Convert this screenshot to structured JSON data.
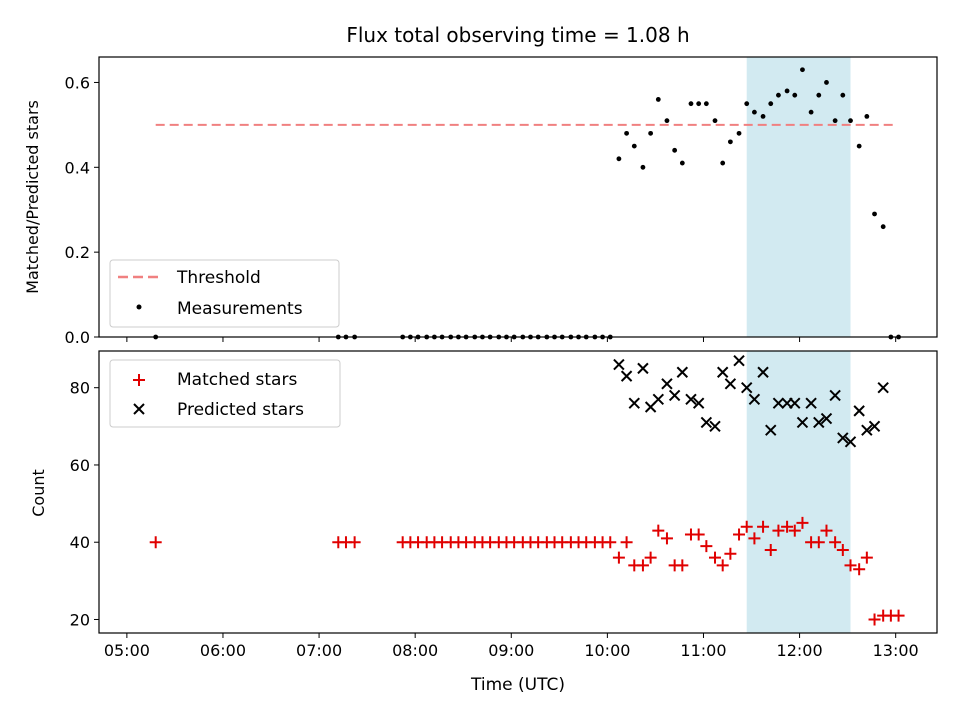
{
  "chart_data": {
    "title": "Flux total observing time = 1.08 h",
    "colors": {
      "threshold": "#f08080",
      "measurements": "#000000",
      "matched": "#e00000",
      "predicted": "#000000",
      "span": "#add8e6"
    },
    "x_axis": {
      "label": "Time (UTC)",
      "ticks": [
        {
          "h": 5,
          "label": "05:00"
        },
        {
          "h": 6,
          "label": "06:00"
        },
        {
          "h": 7,
          "label": "07:00"
        },
        {
          "h": 8,
          "label": "08:00"
        },
        {
          "h": 9,
          "label": "09:00"
        },
        {
          "h": 10,
          "label": "10:00"
        },
        {
          "h": 11,
          "label": "11:00"
        },
        {
          "h": 12,
          "label": "12:00"
        },
        {
          "h": 13,
          "label": "13:00"
        }
      ],
      "range_h": [
        4.71,
        13.43
      ]
    },
    "highlight_span_h": [
      11.45,
      12.53
    ],
    "panels": [
      {
        "type": "scatter",
        "ylabel": "Matched/Predicted stars",
        "ylim": [
          0,
          0.66
        ],
        "yticks": [
          {
            "v": 0.0,
            "label": "0.0"
          },
          {
            "v": 0.2,
            "label": "0.2"
          },
          {
            "v": 0.4,
            "label": "0.4"
          },
          {
            "v": 0.6,
            "label": "0.6"
          }
        ],
        "legend": {
          "position": "lower-left",
          "entries": [
            {
              "name": "Threshold",
              "marker": "dashed-line"
            },
            {
              "name": "Measurements",
              "marker": "dot"
            }
          ]
        },
        "threshold": {
          "name": "Threshold",
          "value": 0.5,
          "x_start_h": 5.3,
          "x_end_h": 13.0
        },
        "measurements": {
          "name": "Measurements",
          "x_h": [
            5.3,
            7.2,
            7.28,
            7.37,
            7.87,
            7.95,
            8.03,
            8.12,
            8.2,
            8.28,
            8.37,
            8.45,
            8.53,
            8.62,
            8.7,
            8.78,
            8.87,
            8.95,
            9.03,
            9.12,
            9.2,
            9.28,
            9.37,
            9.45,
            9.53,
            9.62,
            9.7,
            9.78,
            9.87,
            9.95,
            10.03,
            10.12,
            10.2,
            10.28,
            10.37,
            10.45,
            10.53,
            10.62,
            10.7,
            10.78,
            10.87,
            10.95,
            11.03,
            11.12,
            11.2,
            11.28,
            11.37,
            11.45,
            11.53,
            11.62,
            11.7,
            11.78,
            11.87,
            11.95,
            12.03,
            12.12,
            12.2,
            12.28,
            12.37,
            12.45,
            12.53,
            12.62,
            12.7,
            12.78,
            12.87,
            12.95,
            13.03
          ],
          "y": [
            0,
            0,
            0,
            0,
            0,
            0,
            0,
            0,
            0,
            0,
            0,
            0,
            0,
            0,
            0,
            0,
            0,
            0,
            0,
            0,
            0,
            0,
            0,
            0,
            0,
            0,
            0,
            0,
            0,
            0,
            0,
            0.42,
            0.48,
            0.45,
            0.4,
            0.48,
            0.56,
            0.51,
            0.44,
            0.41,
            0.55,
            0.55,
            0.55,
            0.51,
            0.41,
            0.46,
            0.48,
            0.55,
            0.53,
            0.52,
            0.55,
            0.57,
            0.58,
            0.57,
            0.63,
            0.53,
            0.57,
            0.6,
            0.51,
            0.57,
            0.51,
            0.45,
            0.52,
            0.29,
            0.26,
            0,
            0
          ]
        }
      },
      {
        "type": "scatter",
        "ylabel": "Count",
        "ylim": [
          16.5,
          89.5
        ],
        "yticks": [
          {
            "v": 20,
            "label": "20"
          },
          {
            "v": 40,
            "label": "40"
          },
          {
            "v": 60,
            "label": "60"
          },
          {
            "v": 80,
            "label": "80"
          }
        ],
        "legend": {
          "position": "upper-left",
          "entries": [
            {
              "name": "Matched stars",
              "marker": "plus"
            },
            {
              "name": "Predicted stars",
              "marker": "x"
            }
          ]
        },
        "matched": {
          "name": "Matched stars",
          "x_h": [
            5.3,
            7.2,
            7.28,
            7.37,
            7.87,
            7.95,
            8.03,
            8.12,
            8.2,
            8.28,
            8.37,
            8.45,
            8.53,
            8.62,
            8.7,
            8.78,
            8.87,
            8.95,
            9.03,
            9.12,
            9.2,
            9.28,
            9.37,
            9.45,
            9.53,
            9.62,
            9.7,
            9.78,
            9.87,
            9.95,
            10.03,
            10.12,
            10.2,
            10.28,
            10.37,
            10.45,
            10.53,
            10.62,
            10.7,
            10.78,
            10.87,
            10.95,
            11.03,
            11.12,
            11.2,
            11.28,
            11.37,
            11.45,
            11.53,
            11.62,
            11.7,
            11.78,
            11.87,
            11.95,
            12.03,
            12.12,
            12.2,
            12.28,
            12.37,
            12.45,
            12.53,
            12.62,
            12.7,
            12.78,
            12.87,
            12.95,
            13.03
          ],
          "y": [
            40,
            40,
            40,
            40,
            40,
            40,
            40,
            40,
            40,
            40,
            40,
            40,
            40,
            40,
            40,
            40,
            40,
            40,
            40,
            40,
            40,
            40,
            40,
            40,
            40,
            40,
            40,
            40,
            40,
            40,
            40,
            36,
            40,
            34,
            34,
            36,
            43,
            41,
            34,
            34,
            42,
            42,
            39,
            36,
            34,
            37,
            42,
            44,
            41,
            44,
            38,
            43,
            44,
            43,
            45,
            40,
            40,
            43,
            40,
            38,
            34,
            33,
            36,
            20,
            21,
            21,
            21
          ]
        },
        "predicted": {
          "name": "Predicted stars",
          "x_h": [
            10.12,
            10.2,
            10.28,
            10.37,
            10.45,
            10.53,
            10.62,
            10.7,
            10.78,
            10.87,
            10.95,
            11.03,
            11.12,
            11.2,
            11.28,
            11.37,
            11.45,
            11.53,
            11.62,
            11.7,
            11.78,
            11.87,
            11.95,
            12.03,
            12.12,
            12.2,
            12.28,
            12.37,
            12.45,
            12.53,
            12.62,
            12.7,
            12.78,
            12.87
          ],
          "y": [
            86,
            83,
            76,
            85,
            75,
            77,
            81,
            78,
            84,
            77,
            76,
            71,
            70,
            84,
            81,
            87,
            80,
            77,
            84,
            69,
            76,
            76,
            76,
            71,
            76,
            71,
            72,
            78,
            67,
            66,
            74,
            69,
            70,
            80
          ]
        }
      }
    ]
  }
}
